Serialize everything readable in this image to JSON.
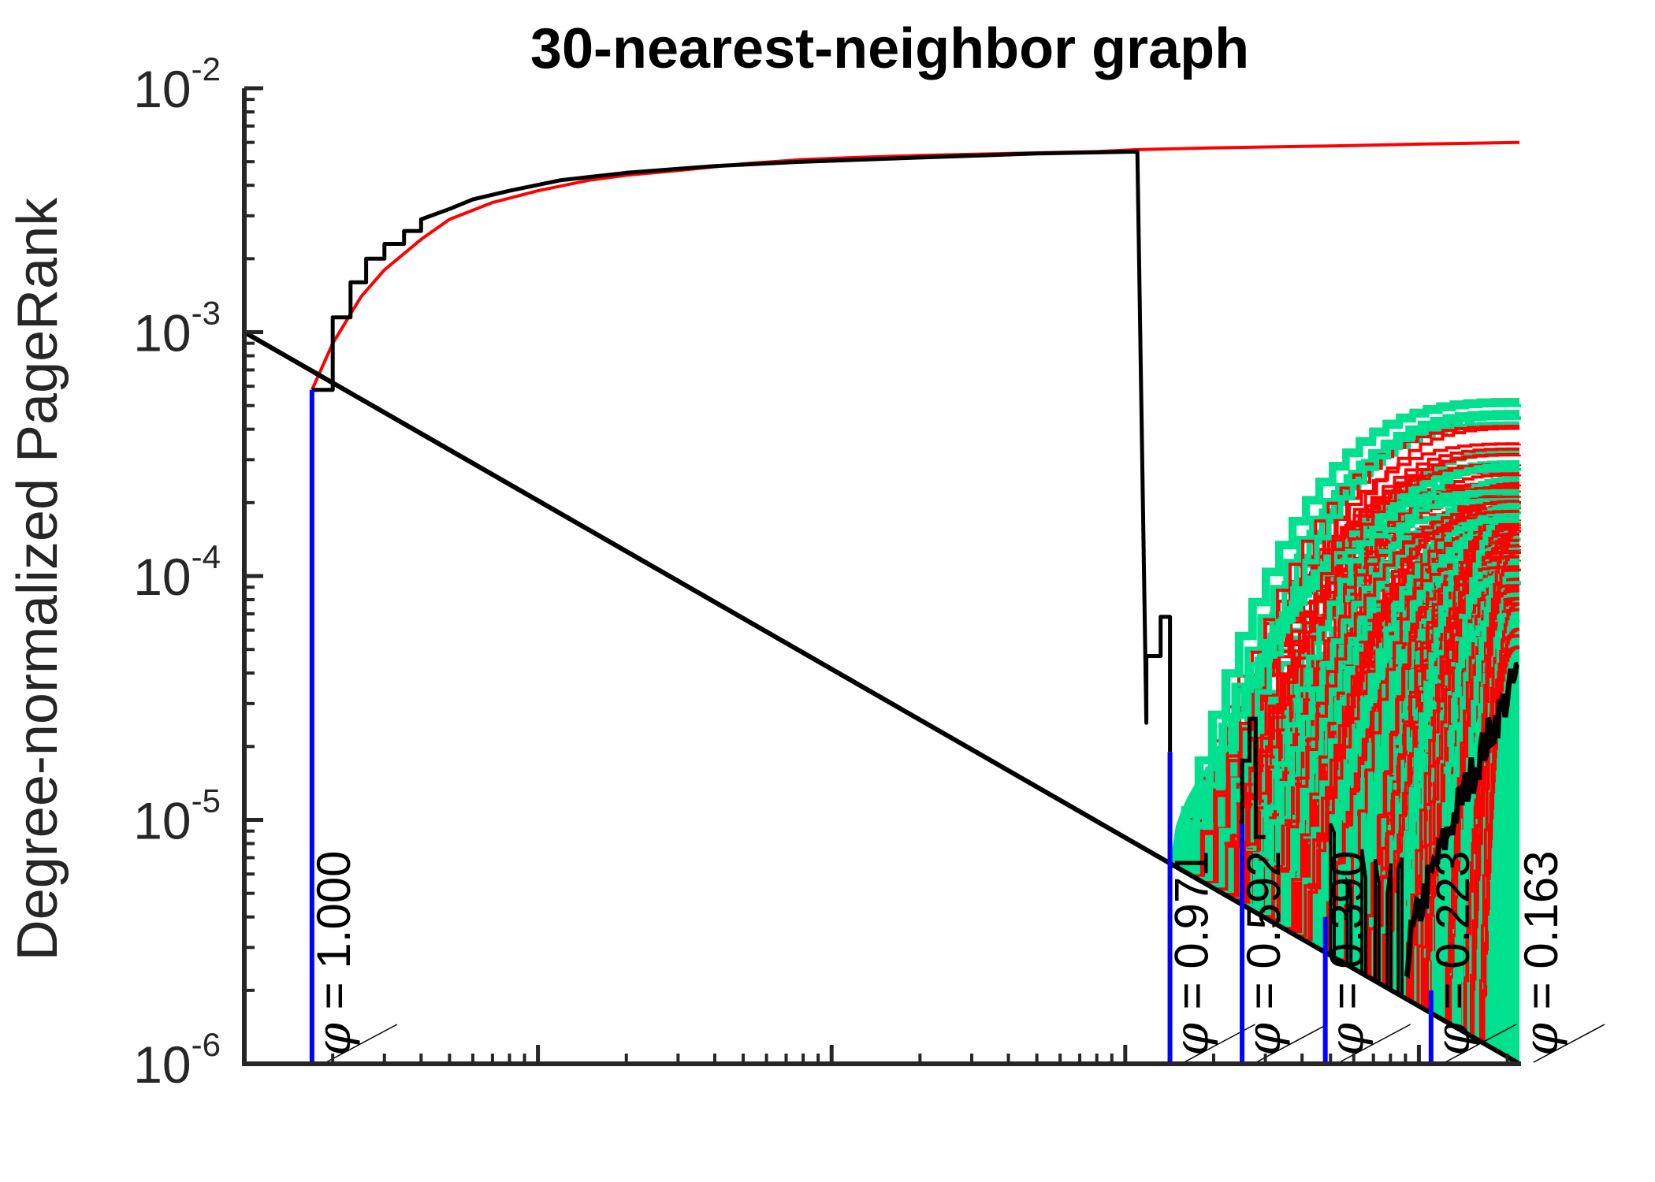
{
  "chart_data": {
    "type": "line",
    "title": "30-nearest-neighbor graph",
    "xlabel": "",
    "ylabel": "Degree-normalized PageRank",
    "yscale": "log",
    "ylim": [
      1e-06,
      0.01
    ],
    "yticks": [
      {
        "base": "10",
        "exp": "-2",
        "value": 0.01
      },
      {
        "base": "10",
        "exp": "-3",
        "value": 0.001
      },
      {
        "base": "10",
        "exp": "-4",
        "value": 0.0001
      },
      {
        "base": "10",
        "exp": "-5",
        "value": 1e-05
      },
      {
        "base": "10",
        "exp": "-6",
        "value": 1e-06
      }
    ],
    "xscale": "log",
    "xlim": [
      1,
      22000
    ],
    "grid": false,
    "legend": "none",
    "colors": {
      "red_sweep": "#ff0000",
      "green_sweep": "#00e18f",
      "black_sweep": "#000000",
      "threshold_markers": "#0000ff"
    },
    "threshold_line": {
      "name": "",
      "color": "#000000",
      "x": [
        1,
        22000
      ],
      "y": [
        0.001,
        1e-06
      ]
    },
    "phi_markers": [
      {
        "label": "1.000",
        "x": 1.7,
        "y": 0.00058
      },
      {
        "label": "0.971",
        "x": 1420,
        "y": 1.9e-05
      },
      {
        "label": "0.592",
        "x": 2500,
        "y": 9.6e-06
      },
      {
        "label": "0.390",
        "x": 4800,
        "y": 4e-06
      },
      {
        "label": "0.223",
        "x": 11000,
        "y": 2e-06
      },
      {
        "label": "0.163",
        "x": 22000,
        "y": 1e-06
      }
    ],
    "phi_symbol": "φ",
    "phi_equals": "=",
    "series": [
      {
        "color": "#ff0000",
        "x": [
          1.7,
          2.0,
          2.5,
          3.0,
          4.0,
          5.0,
          7.0,
          10,
          15,
          20,
          30,
          50,
          80,
          120,
          200,
          400,
          800,
          1100,
          2000,
          5000,
          10000,
          22000
        ],
        "y": [
          0.00058,
          0.0009,
          0.0014,
          0.0018,
          0.0024,
          0.0029,
          0.0034,
          0.0038,
          0.0042,
          0.0044,
          0.0046,
          0.0049,
          0.0051,
          0.0052,
          0.0053,
          0.0054,
          0.0055,
          0.0056,
          0.0057,
          0.0058,
          0.0059,
          0.006
        ]
      },
      {
        "color": "#000000",
        "x": [
          1.7,
          2.0,
          2.0,
          2.3,
          2.3,
          2.6,
          2.6,
          3.0,
          3.0,
          3.5,
          3.5,
          4.0,
          4.0,
          5.0,
          6.0,
          8.0,
          12,
          20,
          40,
          80,
          200,
          500,
          1100,
          1180,
          1180,
          1320,
          1320,
          1420,
          1420
        ],
        "y": [
          0.00058,
          0.00058,
          0.00115,
          0.00115,
          0.0016,
          0.0016,
          0.002,
          0.002,
          0.0023,
          0.0023,
          0.0026,
          0.0026,
          0.0029,
          0.0032,
          0.0035,
          0.0038,
          0.0042,
          0.0045,
          0.0048,
          0.005,
          0.0052,
          0.0054,
          0.0055,
          2.5e-05,
          4.7e-05,
          4.7e-05,
          6.8e-05,
          6.8e-05,
          1.9e-05
        ]
      }
    ]
  }
}
